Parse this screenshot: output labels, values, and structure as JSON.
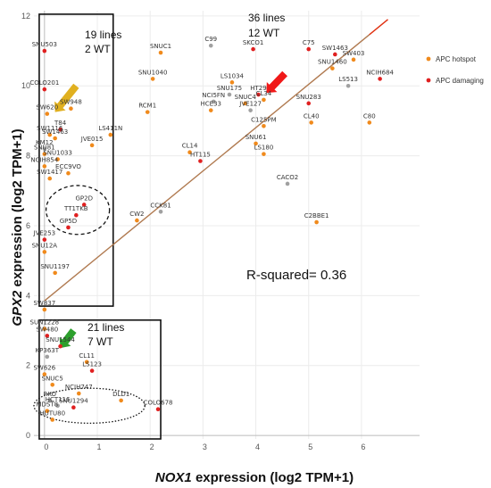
{
  "chart_data": {
    "type": "scatter",
    "title": "",
    "xlabel_gene": "NOX1",
    "xlabel_rest": " expression (log2 TPM+1)",
    "ylabel_gene": "GPX2",
    "ylabel_rest": " expression (log2 TPM+1)",
    "xlim": [
      -0.2,
      7.1
    ],
    "ylim": [
      -0.1,
      12.15
    ],
    "xticks": [
      "0",
      "1",
      "2",
      "3",
      "4",
      "5",
      "6"
    ],
    "yticks": [
      "0",
      "2",
      "4",
      "6",
      "8",
      "10",
      "12"
    ],
    "grid": true,
    "legend_position": "right",
    "colors": {
      "hotspot": "#f08a1c",
      "damaging": "#e02020",
      "wt": "#a0a0a0",
      "trend": "#b07a50",
      "trend_end": "#e03010"
    },
    "legend": [
      {
        "name": "APC hotspot",
        "color": "#f08a1c"
      },
      {
        "name": "APC damaging",
        "color": "#e02020"
      }
    ],
    "trendline": {
      "x": [
        0.0,
        6.5
      ],
      "y": [
        3.85,
        11.9
      ]
    },
    "annotations": {
      "r_squared": "R-squared= 0.36",
      "box_left_top_lines": "19 lines",
      "box_left_top_wt": "2  WT",
      "top_right_lines": "36 lines",
      "top_right_wt": "12 WT",
      "box_bottom_lines": "21 lines",
      "box_bottom_wt": "7 WT"
    },
    "boxes": [
      {
        "x_range": [
          -0.1,
          1.3
        ],
        "y_range": [
          3.7,
          12.05
        ]
      },
      {
        "x_range": [
          -0.1,
          2.2
        ],
        "y_range": [
          -0.1,
          3.3
        ]
      }
    ],
    "circles": [
      {
        "cx": 0.63,
        "cy": 6.45,
        "rx": 0.6,
        "ry": 0.7
      },
      {
        "cx": 0.85,
        "cy": 0.85,
        "rx": 1.05,
        "ry": 0.5
      }
    ],
    "arrows": [
      {
        "color": "#e0b020",
        "from": [
          0.6,
          10.0
        ],
        "to": [
          0.2,
          9.25
        ]
      },
      {
        "color": "#f01818",
        "from": [
          4.55,
          10.35
        ],
        "to": [
          4.2,
          9.8
        ]
      },
      {
        "color": "#2da02d",
        "from": [
          0.55,
          3.0
        ],
        "to": [
          0.3,
          2.5
        ]
      }
    ],
    "points": [
      {
        "label": "SNU503",
        "x": 0.0,
        "y": 11.0,
        "type": "damaging"
      },
      {
        "label": "COLO201",
        "x": 0.0,
        "y": 9.9,
        "type": "damaging"
      },
      {
        "label": "SW948",
        "x": 0.5,
        "y": 9.35,
        "type": "hotspot"
      },
      {
        "label": "SW620",
        "x": 0.05,
        "y": 9.2,
        "type": "hotspot"
      },
      {
        "label": "T84",
        "x": 0.3,
        "y": 8.75,
        "type": "damaging"
      },
      {
        "label": "SW1116",
        "x": 0.1,
        "y": 8.6,
        "type": "hotspot"
      },
      {
        "label": "SW1463",
        "x": 0.2,
        "y": 8.5,
        "type": "hotspot"
      },
      {
        "label": "LS411N",
        "x": 1.25,
        "y": 8.6,
        "type": "hotspot"
      },
      {
        "label": "JVE015",
        "x": 0.9,
        "y": 8.3,
        "type": "hotspot"
      },
      {
        "label": "KM12",
        "x": 0.0,
        "y": 8.2,
        "type": "wt"
      },
      {
        "label": "SNU81",
        "x": 0.0,
        "y": 8.05,
        "type": "hotspot"
      },
      {
        "label": "SNU1033",
        "x": 0.25,
        "y": 7.9,
        "type": "hotspot"
      },
      {
        "label": "NCIH854",
        "x": 0.0,
        "y": 7.7,
        "type": "hotspot"
      },
      {
        "label": "ECC9VO",
        "x": 0.45,
        "y": 7.5,
        "type": "hotspot"
      },
      {
        "label": "SW1417",
        "x": 0.1,
        "y": 7.35,
        "type": "hotspot"
      },
      {
        "label": "GP2D",
        "x": 0.75,
        "y": 6.6,
        "type": "damaging"
      },
      {
        "label": "TT1TKB",
        "x": 0.6,
        "y": 6.3,
        "type": "damaging"
      },
      {
        "label": "GP5D",
        "x": 0.45,
        "y": 5.95,
        "type": "damaging"
      },
      {
        "label": "JVE253",
        "x": 0.0,
        "y": 5.6,
        "type": "damaging"
      },
      {
        "label": "SNU12A",
        "x": 0.0,
        "y": 5.25,
        "type": "hotspot"
      },
      {
        "label": "SNU1197",
        "x": 0.2,
        "y": 4.65,
        "type": "hotspot"
      },
      {
        "label": "SNUC1",
        "x": 2.2,
        "y": 10.95,
        "type": "hotspot"
      },
      {
        "label": "SNU1040",
        "x": 2.05,
        "y": 10.2,
        "type": "hotspot"
      },
      {
        "label": "C99",
        "x": 3.15,
        "y": 11.15,
        "type": "wt"
      },
      {
        "label": "RCM1",
        "x": 1.95,
        "y": 9.25,
        "type": "hotspot"
      },
      {
        "label": "SKCO1",
        "x": 3.95,
        "y": 11.05,
        "type": "damaging"
      },
      {
        "label": "LS1034",
        "x": 3.55,
        "y": 10.1,
        "type": "hotspot"
      },
      {
        "label": "SNU175",
        "x": 3.5,
        "y": 9.75,
        "type": "wt"
      },
      {
        "label": "NCI5FN",
        "x": 3.2,
        "y": 9.55,
        "type": "wt"
      },
      {
        "label": "HCE33",
        "x": 3.15,
        "y": 9.3,
        "type": "hotspot"
      },
      {
        "label": "HT29",
        "x": 4.05,
        "y": 9.75,
        "type": "damaging"
      },
      {
        "label": "SNUC4",
        "x": 3.8,
        "y": 9.5,
        "type": "hotspot"
      },
      {
        "label": "CL34",
        "x": 4.15,
        "y": 9.6,
        "type": "hotspot"
      },
      {
        "label": "JVE127",
        "x": 3.9,
        "y": 9.3,
        "type": "wt"
      },
      {
        "label": "C125PM",
        "x": 4.15,
        "y": 8.85,
        "type": "hotspot"
      },
      {
        "label": "SNU61",
        "x": 4.0,
        "y": 8.35,
        "type": "hotspot"
      },
      {
        "label": "LS180",
        "x": 4.15,
        "y": 8.05,
        "type": "hotspot"
      },
      {
        "label": "CL14",
        "x": 2.75,
        "y": 8.1,
        "type": "hotspot"
      },
      {
        "label": "HT115",
        "x": 2.95,
        "y": 7.85,
        "type": "damaging"
      },
      {
        "label": "C75",
        "x": 5.0,
        "y": 11.05,
        "type": "damaging"
      },
      {
        "label": "SW1463",
        "x": 5.5,
        "y": 10.9,
        "type": "damaging"
      },
      {
        "label": "SW403",
        "x": 5.85,
        "y": 10.75,
        "type": "hotspot"
      },
      {
        "label": "SNU1460",
        "x": 5.45,
        "y": 10.5,
        "type": "hotspot"
      },
      {
        "label": "NCIH684",
        "x": 6.35,
        "y": 10.2,
        "type": "damaging"
      },
      {
        "label": "LS513",
        "x": 5.75,
        "y": 10.0,
        "type": "wt"
      },
      {
        "label": "SNU283",
        "x": 5.0,
        "y": 9.5,
        "type": "damaging"
      },
      {
        "label": "CL40",
        "x": 5.05,
        "y": 8.95,
        "type": "hotspot"
      },
      {
        "label": "C80",
        "x": 6.15,
        "y": 8.95,
        "type": "hotspot"
      },
      {
        "label": "CACO2",
        "x": 4.6,
        "y": 7.2,
        "type": "wt"
      },
      {
        "label": "CCK81",
        "x": 2.2,
        "y": 6.4,
        "type": "wt"
      },
      {
        "label": "CW2",
        "x": 1.75,
        "y": 6.15,
        "type": "hotspot"
      },
      {
        "label": "C2BBE1",
        "x": 5.15,
        "y": 6.1,
        "type": "hotspot"
      },
      {
        "label": "SW837",
        "x": 0.0,
        "y": 3.6,
        "type": "hotspot"
      },
      {
        "label": "SUN1228",
        "x": 0.0,
        "y": 3.05,
        "type": "hotspot"
      },
      {
        "label": "SW480",
        "x": 0.05,
        "y": 2.85,
        "type": "damaging"
      },
      {
        "label": "SNU1544",
        "x": 0.3,
        "y": 2.55,
        "type": "damaging"
      },
      {
        "label": "KP363T",
        "x": 0.05,
        "y": 2.25,
        "type": "wt"
      },
      {
        "label": "CL11",
        "x": 0.8,
        "y": 2.1,
        "type": "hotspot"
      },
      {
        "label": "SW626",
        "x": 0.0,
        "y": 1.75,
        "type": "hotspot"
      },
      {
        "label": "LS123",
        "x": 0.9,
        "y": 1.85,
        "type": "damaging"
      },
      {
        "label": "SNUC5",
        "x": 0.15,
        "y": 1.45,
        "type": "hotspot"
      },
      {
        "label": "NCIH747",
        "x": 0.65,
        "y": 1.2,
        "type": "hotspot"
      },
      {
        "label": "DLD1",
        "x": 1.45,
        "y": 1.0,
        "type": "hotspot"
      },
      {
        "label": "RKO",
        "x": 0.1,
        "y": 1.0,
        "type": "wt"
      },
      {
        "label": "HCT116",
        "x": 0.25,
        "y": 0.85,
        "type": "wt"
      },
      {
        "label": "SNU1294",
        "x": 0.55,
        "y": 0.8,
        "type": "damaging"
      },
      {
        "label": "MDST8",
        "x": 0.05,
        "y": 0.7,
        "type": "hotspot"
      },
      {
        "label": "HUTU80",
        "x": 0.15,
        "y": 0.45,
        "type": "hotspot"
      },
      {
        "label": "COLO678",
        "x": 2.15,
        "y": 0.75,
        "type": "damaging"
      }
    ]
  }
}
